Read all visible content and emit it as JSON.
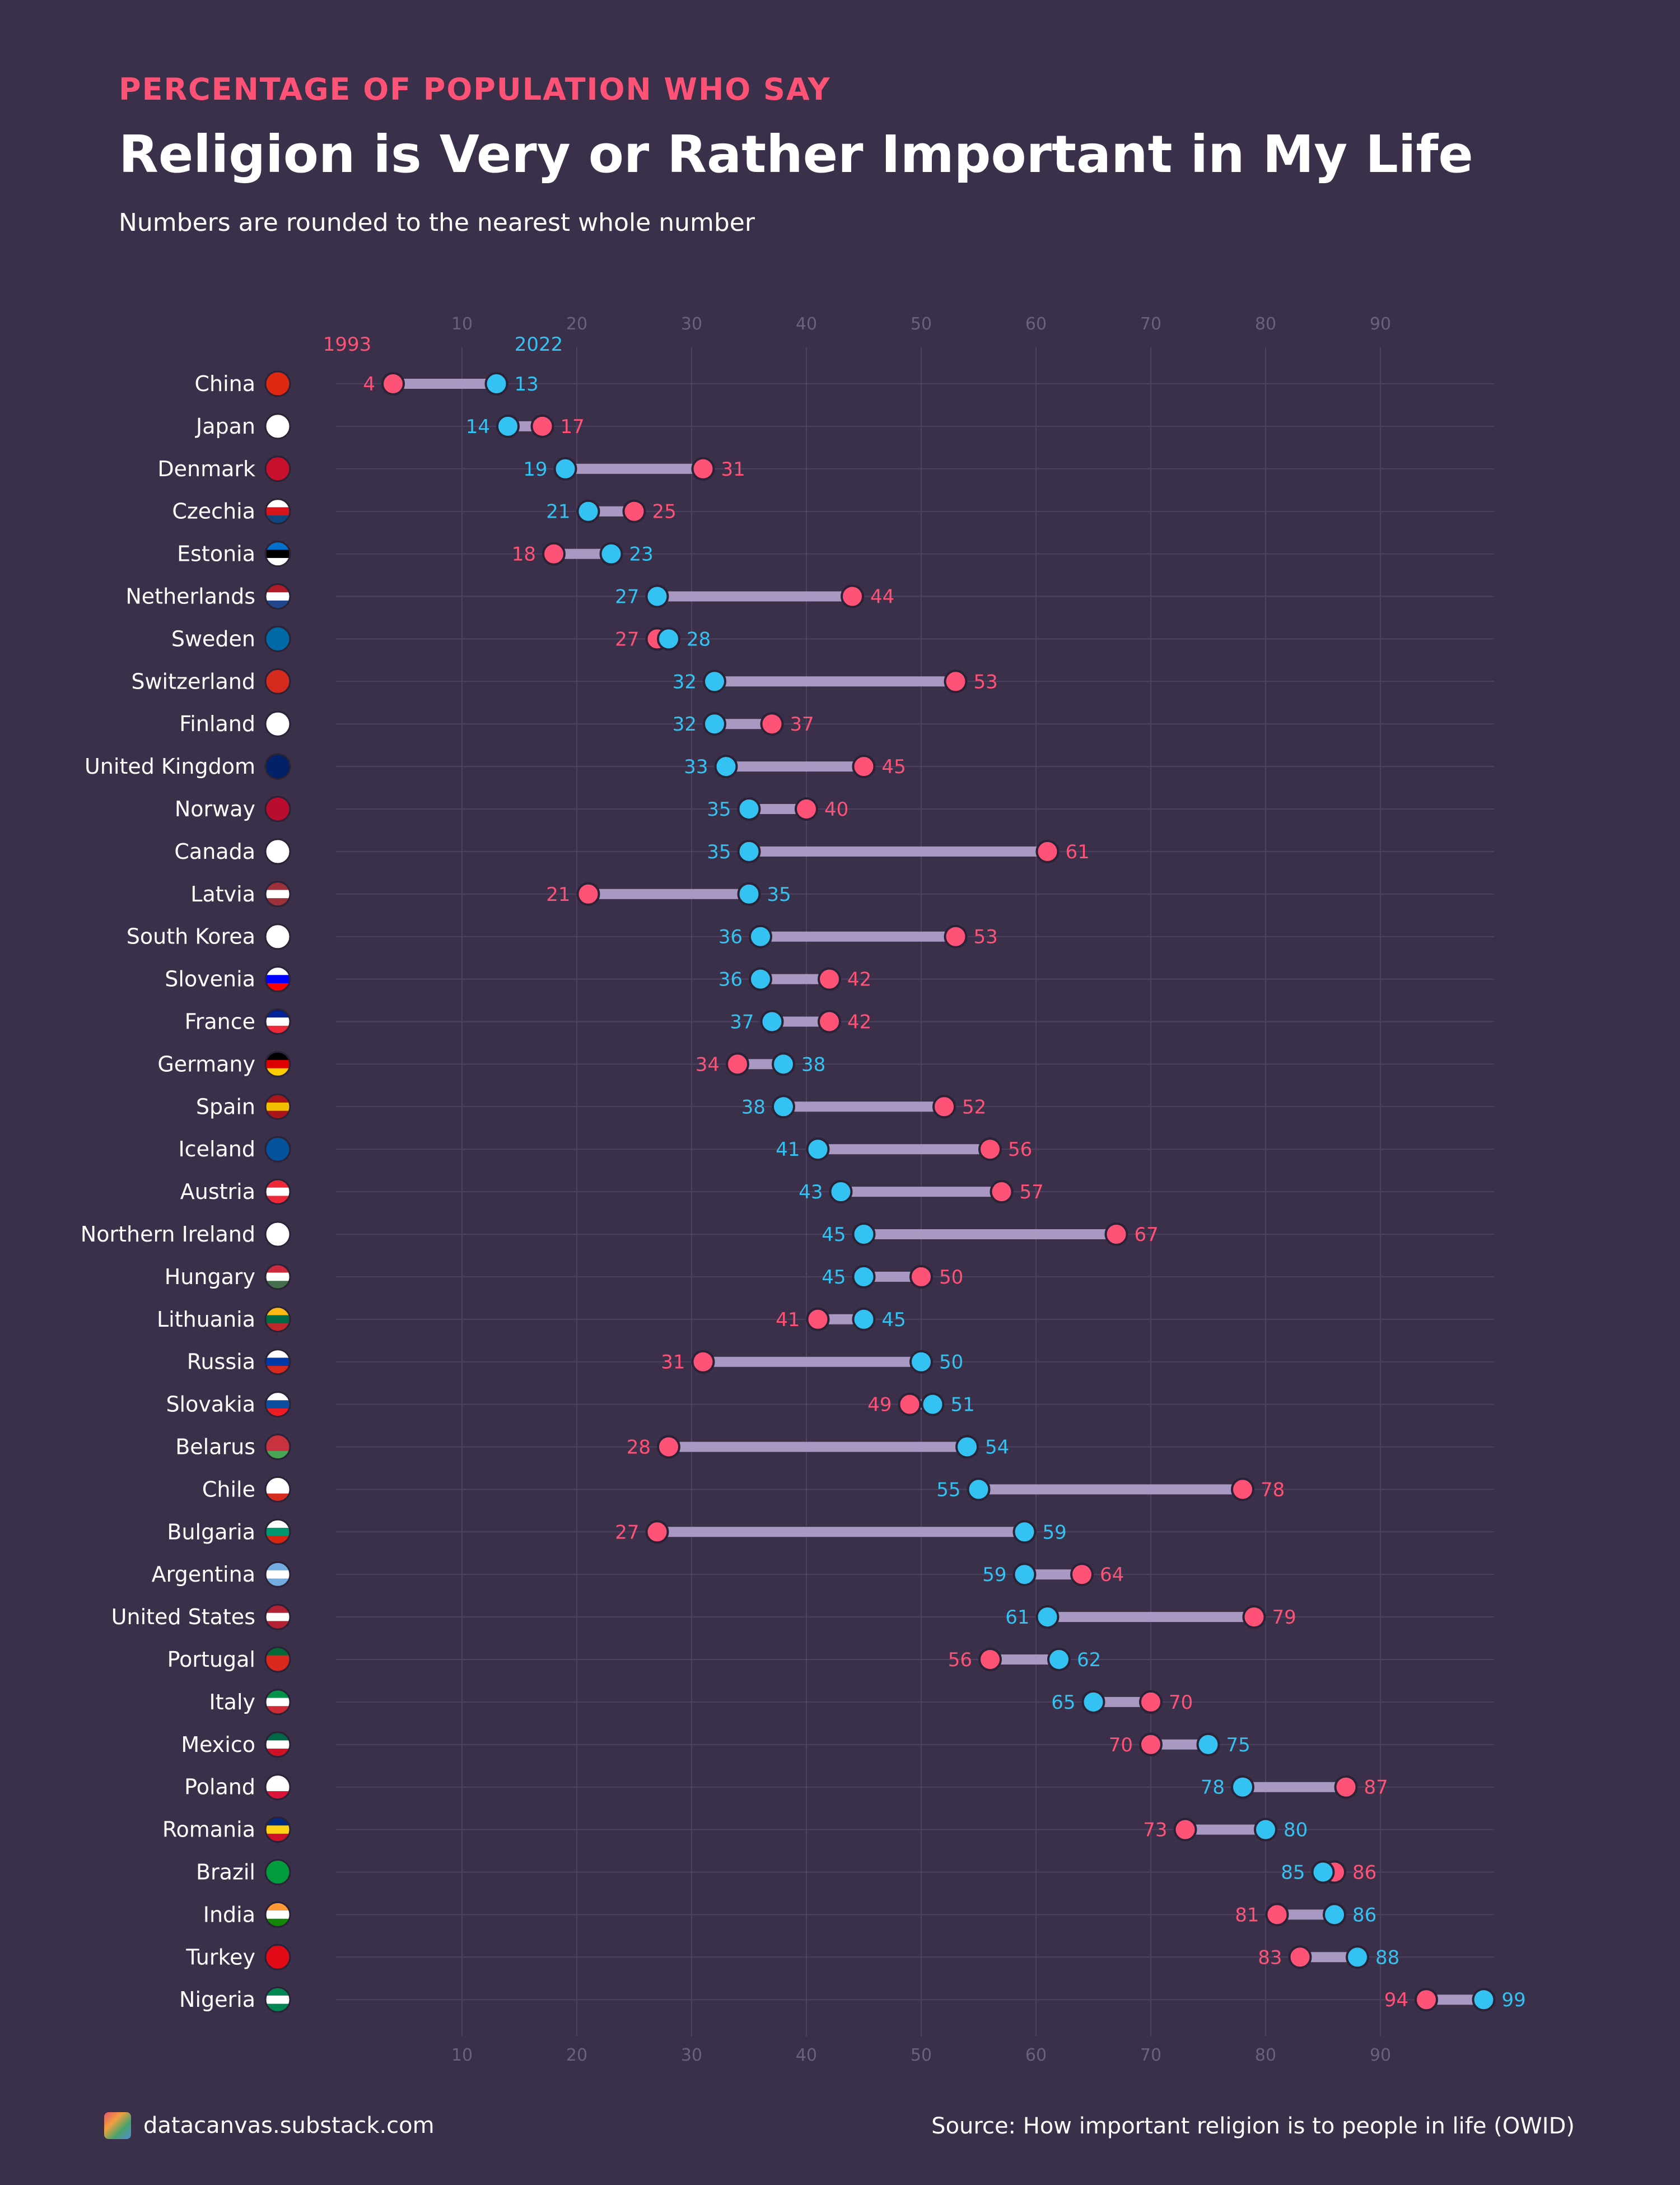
{
  "header": {
    "kicker": "PERCENTAGE OF POPULATION WHO SAY",
    "title": "Religion is Very or Rather Important in My Life",
    "subtitle": "Numbers are rounded to the nearest whole number"
  },
  "footer": {
    "brand": "datacanvas.substack.com",
    "source": "Source: How important religion is to people in life (OWID)"
  },
  "colors": {
    "background": "#3b3049",
    "year1993": "#ff5277",
    "year2022": "#33c2f2",
    "connector": "#a898c2"
  },
  "chart_data": {
    "type": "dumbbell",
    "title": "Religion is Very or Rather Important in My Life",
    "series": [
      {
        "name": "1993",
        "label": "1993",
        "values": [
          4,
          17,
          31,
          25,
          18,
          44,
          27,
          53,
          37,
          45,
          40,
          61,
          21,
          53,
          42,
          42,
          34,
          52,
          56,
          57,
          67,
          50,
          41,
          31,
          49,
          28,
          78,
          27,
          64,
          79,
          56,
          70,
          70,
          87,
          73,
          86,
          81,
          83,
          94
        ]
      },
      {
        "name": "2022",
        "label": "2022",
        "values": [
          13,
          14,
          19,
          21,
          23,
          27,
          28,
          32,
          32,
          33,
          35,
          35,
          35,
          36,
          36,
          37,
          38,
          38,
          41,
          43,
          45,
          45,
          45,
          50,
          51,
          54,
          55,
          59,
          59,
          61,
          62,
          65,
          75,
          78,
          80,
          85,
          86,
          88,
          99
        ]
      }
    ],
    "categories": [
      "China",
      "Japan",
      "Denmark",
      "Czechia",
      "Estonia",
      "Netherlands",
      "Sweden",
      "Switzerland",
      "Finland",
      "United Kingdom",
      "Norway",
      "Canada",
      "Latvia",
      "South Korea",
      "Slovenia",
      "France",
      "Germany",
      "Spain",
      "Iceland",
      "Austria",
      "Northern Ireland",
      "Hungary",
      "Lithuania",
      "Russia",
      "Slovakia",
      "Belarus",
      "Chile",
      "Bulgaria",
      "Argentina",
      "United States",
      "Portugal",
      "Italy",
      "Mexico",
      "Poland",
      "Romania",
      "Brazil",
      "India",
      "Turkey",
      "Nigeria"
    ],
    "flags": [
      [
        "#de2910",
        "#de2910",
        "#de2910"
      ],
      [
        "#ffffff",
        "#ffffff",
        "#ffffff"
      ],
      [
        "#c8102e",
        "#c8102e",
        "#c8102e"
      ],
      [
        "#ffffff",
        "#d7141a",
        "#11457e"
      ],
      [
        "#0072ce",
        "#000000",
        "#ffffff"
      ],
      [
        "#ae1c28",
        "#ffffff",
        "#21468b"
      ],
      [
        "#006aa7",
        "#006aa7",
        "#006aa7"
      ],
      [
        "#d52b1e",
        "#d52b1e",
        "#d52b1e"
      ],
      [
        "#ffffff",
        "#ffffff",
        "#ffffff"
      ],
      [
        "#012169",
        "#012169",
        "#012169"
      ],
      [
        "#ba0c2f",
        "#ba0c2f",
        "#ba0c2f"
      ],
      [
        "#ffffff",
        "#ffffff",
        "#ffffff"
      ],
      [
        "#9e3039",
        "#ffffff",
        "#9e3039"
      ],
      [
        "#ffffff",
        "#ffffff",
        "#ffffff"
      ],
      [
        "#ffffff",
        "#0000ff",
        "#ff0000"
      ],
      [
        "#002395",
        "#ffffff",
        "#ed2939"
      ],
      [
        "#000000",
        "#dd0000",
        "#ffce00"
      ],
      [
        "#aa151b",
        "#f1bf00",
        "#aa151b"
      ],
      [
        "#02529c",
        "#02529c",
        "#02529c"
      ],
      [
        "#ed2939",
        "#ffffff",
        "#ed2939"
      ],
      [
        "#ffffff",
        "#ffffff",
        "#ffffff"
      ],
      [
        "#cd2a3e",
        "#ffffff",
        "#436f4d"
      ],
      [
        "#fdb913",
        "#006a44",
        "#c1272d"
      ],
      [
        "#ffffff",
        "#0039a6",
        "#d52b1e"
      ],
      [
        "#ffffff",
        "#0b4ea2",
        "#ee1c25"
      ],
      [
        "#c8313e",
        "#c8313e",
        "#4aa657"
      ],
      [
        "#ffffff",
        "#ffffff",
        "#d52b1e"
      ],
      [
        "#ffffff",
        "#00966e",
        "#d62612"
      ],
      [
        "#74acdf",
        "#ffffff",
        "#74acdf"
      ],
      [
        "#b22234",
        "#ffffff",
        "#b22234"
      ],
      [
        "#046a38",
        "#da291c",
        "#da291c"
      ],
      [
        "#009246",
        "#ffffff",
        "#ce2b37"
      ],
      [
        "#006847",
        "#ffffff",
        "#ce1126"
      ],
      [
        "#ffffff",
        "#ffffff",
        "#dc143c"
      ],
      [
        "#002b7f",
        "#fcd116",
        "#ce1126"
      ],
      [
        "#009c3b",
        "#009c3b",
        "#009c3b"
      ],
      [
        "#ff9933",
        "#ffffff",
        "#138808"
      ],
      [
        "#e30a17",
        "#e30a17",
        "#e30a17"
      ],
      [
        "#008751",
        "#ffffff",
        "#008751"
      ]
    ],
    "xlim": [
      0,
      100
    ],
    "xticks": [
      10,
      20,
      30,
      40,
      50,
      60,
      70,
      80,
      90
    ],
    "legend": [
      "1993",
      "2022"
    ],
    "grid": true
  }
}
